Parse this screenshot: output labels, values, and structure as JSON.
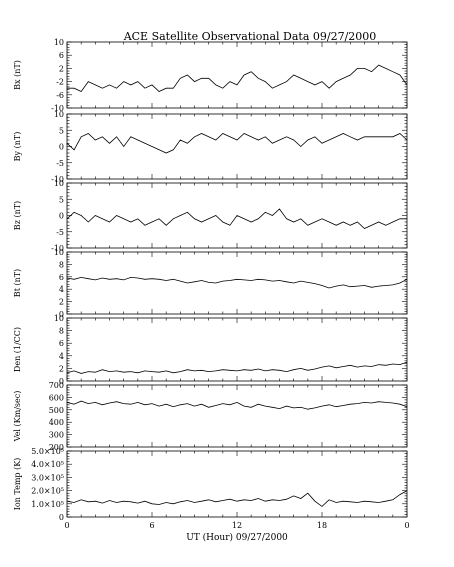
{
  "chart_data": {
    "type": "line",
    "title": "ACE Satellite Observational Data   09/27/2000",
    "xlabel": "UT (Hour)  09/27/2000",
    "x_ticks": [
      "0",
      "6",
      "12",
      "18",
      "0"
    ],
    "xlim": [
      0,
      24
    ],
    "panels": [
      {
        "name": "Bx (nT)",
        "ylim": [
          -10,
          10
        ],
        "y_ticks": [
          -10,
          -6,
          -2,
          2,
          6,
          10
        ],
        "y_tick_labels": [
          "-10",
          "-6",
          "-2",
          "2",
          "6",
          "10"
        ],
        "gap_hours": [],
        "x": [
          0,
          0.5,
          1,
          1.5,
          2,
          2.5,
          3,
          3.5,
          4,
          4.5,
          5,
          5.5,
          6,
          6.5,
          7,
          7.5,
          8,
          8.5,
          9,
          9.5,
          10,
          10.5,
          11,
          11.5,
          12,
          12.5,
          13,
          13.5,
          14,
          14.5,
          15,
          15.5,
          16,
          16.5,
          17,
          17.5,
          18,
          18.5,
          19,
          19.5,
          20,
          20.5,
          21,
          21.5,
          22,
          22.5,
          23,
          23.5,
          24
        ],
        "values": [
          -4,
          -4,
          -5,
          -2,
          -3,
          -4,
          -3,
          -4,
          -2,
          -3,
          -2,
          -4,
          -3,
          -5,
          -4,
          -4,
          -1,
          0,
          -2,
          -1,
          -1,
          -3,
          -4,
          -2,
          -3,
          0,
          1,
          -1,
          -2,
          -4,
          -3,
          -2,
          0,
          -1,
          -2,
          -3,
          -2,
          -4,
          -2,
          -1,
          0,
          2,
          2,
          1,
          3,
          2,
          1,
          0,
          -3
        ]
      },
      {
        "name": "By (nT)",
        "ylim": [
          -10,
          10
        ],
        "y_ticks": [
          -10,
          -5,
          0,
          5,
          10
        ],
        "y_tick_labels": [
          "-10",
          "-5",
          "0",
          "5",
          "10"
        ],
        "gap_hours": [],
        "x": [
          0,
          0.5,
          1,
          1.5,
          2,
          2.5,
          3,
          3.5,
          4,
          4.5,
          5,
          5.5,
          6,
          6.5,
          7,
          7.5,
          8,
          8.5,
          9,
          9.5,
          10,
          10.5,
          11,
          11.5,
          12,
          12.5,
          13,
          13.5,
          14,
          14.5,
          15,
          15.5,
          16,
          16.5,
          17,
          17.5,
          18,
          18.5,
          19,
          19.5,
          20,
          20.5,
          21,
          21.5,
          22,
          22.5,
          23,
          23.5,
          24
        ],
        "values": [
          1,
          -1,
          3,
          4,
          2,
          3,
          1,
          3,
          0,
          3,
          2,
          1,
          0,
          -1,
          -2,
          -1,
          2,
          1,
          3,
          4,
          3,
          2,
          4,
          3,
          2,
          4,
          3,
          2,
          3,
          1,
          2,
          3,
          2,
          0,
          2,
          3,
          1,
          2,
          3,
          4,
          3,
          2,
          3,
          3,
          3,
          3,
          3,
          4,
          2
        ]
      },
      {
        "name": "Bz (nT)",
        "ylim": [
          -10,
          10
        ],
        "y_ticks": [
          -10,
          -5,
          0,
          5,
          10
        ],
        "y_tick_labels": [
          "-10",
          "-5",
          "0",
          "5",
          "10"
        ],
        "gap_hours": [],
        "x": [
          0,
          0.5,
          1,
          1.5,
          2,
          2.5,
          3,
          3.5,
          4,
          4.5,
          5,
          5.5,
          6,
          6.5,
          7,
          7.5,
          8,
          8.5,
          9,
          9.5,
          10,
          10.5,
          11,
          11.5,
          12,
          12.5,
          13,
          13.5,
          14,
          14.5,
          15,
          15.5,
          16,
          16.5,
          17,
          17.5,
          18,
          18.5,
          19,
          19.5,
          20,
          20.5,
          21,
          21.5,
          22,
          22.5,
          23,
          23.5,
          24
        ],
        "values": [
          -1,
          1,
          0,
          -2,
          0,
          -1,
          -2,
          0,
          -1,
          -2,
          -1,
          -3,
          -2,
          -1,
          -3,
          -1,
          0,
          1,
          -1,
          -2,
          -1,
          0,
          -2,
          -3,
          0,
          -1,
          -2,
          -1,
          1,
          0,
          2,
          -1,
          -2,
          -1,
          -3,
          -2,
          -1,
          -2,
          -3,
          -2,
          -3,
          -2,
          -4,
          -3,
          -2,
          -3,
          -2,
          -1,
          -1
        ]
      },
      {
        "name": "Bt (nT)",
        "ylim": [
          0,
          10
        ],
        "y_ticks": [
          0,
          2,
          4,
          6,
          8,
          10
        ],
        "y_tick_labels": [
          "0",
          "2",
          "4",
          "6",
          "8",
          "10"
        ],
        "gap_hours": [],
        "x": [
          0,
          0.5,
          1,
          1.5,
          2,
          2.5,
          3,
          3.5,
          4,
          4.5,
          5,
          5.5,
          6,
          6.5,
          7,
          7.5,
          8,
          8.5,
          9,
          9.5,
          10,
          10.5,
          11,
          11.5,
          12,
          12.5,
          13,
          13.5,
          14,
          14.5,
          15,
          15.5,
          16,
          16.5,
          17,
          17.5,
          18,
          18.5,
          19,
          19.5,
          20,
          20.5,
          21,
          21.5,
          22,
          22.5,
          23,
          23.5,
          24
        ],
        "values": [
          5.8,
          5.6,
          5.9,
          5.7,
          5.5,
          5.8,
          5.6,
          5.7,
          5.5,
          5.9,
          5.8,
          5.6,
          5.7,
          5.6,
          5.4,
          5.6,
          5.3,
          5.0,
          5.2,
          5.4,
          5.1,
          5.0,
          5.3,
          5.4,
          5.6,
          5.5,
          5.4,
          5.6,
          5.5,
          5.3,
          5.4,
          5.2,
          5.0,
          5.3,
          5.1,
          4.9,
          4.6,
          4.2,
          4.5,
          4.7,
          4.4,
          4.5,
          4.6,
          4.3,
          4.5,
          4.6,
          4.7,
          5.0,
          5.6
        ]
      },
      {
        "name": "Den (1/CC)",
        "ylim": [
          0,
          10
        ],
        "y_ticks": [
          0,
          2,
          4,
          6,
          8,
          10
        ],
        "y_tick_labels": [
          "0",
          "2",
          "4",
          "6",
          "8",
          "10"
        ],
        "gap_hours": [],
        "x": [
          0,
          0.5,
          1,
          1.5,
          2,
          2.5,
          3,
          3.5,
          4,
          4.5,
          5,
          5.5,
          6,
          6.5,
          7,
          7.5,
          8,
          8.5,
          9,
          9.5,
          10,
          10.5,
          11,
          11.5,
          12,
          12.5,
          13,
          13.5,
          14,
          14.5,
          15,
          15.5,
          16,
          16.5,
          17,
          17.5,
          18,
          18.5,
          19,
          19.5,
          20,
          20.5,
          21,
          21.5,
          22,
          22.5,
          23,
          23.5,
          24
        ],
        "values": [
          1.3,
          1.6,
          1.2,
          1.5,
          1.4,
          1.8,
          1.5,
          1.6,
          1.4,
          1.5,
          1.3,
          1.6,
          1.5,
          1.4,
          1.6,
          1.3,
          1.5,
          1.8,
          1.6,
          1.7,
          1.5,
          1.6,
          1.8,
          1.7,
          1.6,
          1.8,
          1.7,
          1.9,
          1.6,
          1.8,
          1.7,
          1.5,
          1.8,
          2.0,
          1.7,
          1.9,
          2.2,
          2.4,
          2.1,
          2.3,
          2.5,
          2.2,
          2.4,
          2.3,
          2.6,
          2.5,
          2.7,
          2.6,
          3.0
        ]
      },
      {
        "name": "Vel (Km/sec)",
        "ylim": [
          200,
          700
        ],
        "y_ticks": [
          200,
          300,
          400,
          500,
          600,
          700
        ],
        "y_tick_labels": [
          "200",
          "300",
          "400",
          "500",
          "600",
          "700"
        ],
        "gap_hours": [],
        "x": [
          0,
          0.5,
          1,
          1.5,
          2,
          2.5,
          3,
          3.5,
          4,
          4.5,
          5,
          5.5,
          6,
          6.5,
          7,
          7.5,
          8,
          8.5,
          9,
          9.5,
          10,
          10.5,
          11,
          11.5,
          12,
          12.5,
          13,
          13.5,
          14,
          14.5,
          15,
          15.5,
          16,
          16.5,
          17,
          17.5,
          18,
          18.5,
          19,
          19.5,
          20,
          20.5,
          21,
          21.5,
          22,
          22.5,
          23,
          23.5,
          24
        ],
        "values": [
          560,
          545,
          570,
          550,
          560,
          540,
          555,
          565,
          550,
          545,
          560,
          540,
          550,
          530,
          545,
          525,
          540,
          550,
          530,
          545,
          520,
          535,
          550,
          540,
          560,
          530,
          520,
          545,
          530,
          520,
          510,
          530,
          515,
          520,
          505,
          515,
          530,
          540,
          525,
          535,
          545,
          550,
          560,
          555,
          565,
          560,
          555,
          545,
          525
        ]
      },
      {
        "name": "Ion Temp (K)",
        "ylim": [
          0,
          500000
        ],
        "y_ticks": [
          0,
          100000,
          200000,
          300000,
          400000,
          500000
        ],
        "y_tick_labels": [
          "0",
          "1.0×10⁵",
          "2.0×10⁵",
          "3.0×10⁵",
          "4.0×10⁵",
          "5.0×10⁵"
        ],
        "gap_hours": [],
        "x": [
          0,
          0.5,
          1,
          1.5,
          2,
          2.5,
          3,
          3.5,
          4,
          4.5,
          5,
          5.5,
          6,
          6.5,
          7,
          7.5,
          8,
          8.5,
          9,
          9.5,
          10,
          10.5,
          11,
          11.5,
          12,
          12.5,
          13,
          13.5,
          14,
          14.5,
          15,
          15.5,
          16,
          16.5,
          17,
          17.5,
          18,
          18.5,
          19,
          19.5,
          20,
          20.5,
          21,
          21.5,
          22,
          22.5,
          23,
          23.5,
          24
        ],
        "values": [
          120000,
          110000,
          130000,
          115000,
          120000,
          105000,
          125000,
          110000,
          120000,
          115000,
          105000,
          120000,
          100000,
          95000,
          110000,
          100000,
          115000,
          125000,
          110000,
          120000,
          130000,
          115000,
          125000,
          135000,
          120000,
          130000,
          125000,
          140000,
          120000,
          130000,
          125000,
          135000,
          160000,
          140000,
          180000,
          120000,
          80000,
          130000,
          110000,
          120000,
          115000,
          110000,
          120000,
          115000,
          110000,
          120000,
          130000,
          170000,
          200000
        ]
      }
    ]
  }
}
